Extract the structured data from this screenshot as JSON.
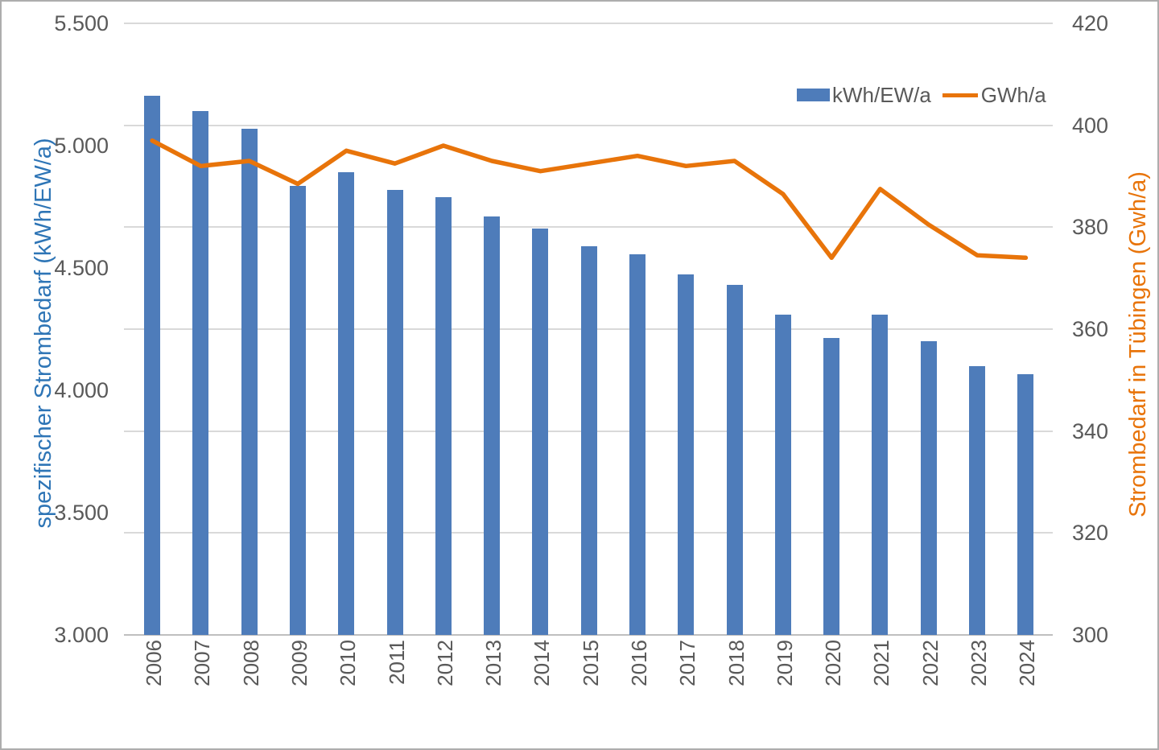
{
  "frame": {
    "background": "#ffffff",
    "border_color": "#adadad"
  },
  "legend": {
    "position": "top-right",
    "bar_label": "kWh/EW/a",
    "line_label": "GWh/a",
    "text_color": "#595959"
  },
  "left_axis": {
    "title": "spezifischer Strombedarf (kWh/EW/a)",
    "title_color": "#2e75b6",
    "tick_labels": [
      "5.500",
      "5.000",
      "4.500",
      "4.000",
      "3.500",
      "3.000"
    ],
    "tick_values": [
      5500,
      5000,
      4500,
      4000,
      3500,
      3000
    ],
    "min": 3000,
    "max": 5500
  },
  "right_axis": {
    "title": "Strombedarf in Tübingen (Gwh/a)",
    "title_color": "#e8740a",
    "tick_labels": [
      "420",
      "400",
      "380",
      "360",
      "340",
      "320",
      "300"
    ],
    "tick_values": [
      420,
      400,
      380,
      360,
      340,
      320,
      300
    ],
    "min": 300,
    "max": 420
  },
  "chart_data": {
    "type": "bar",
    "subtype": "bar+line dual axis",
    "title": "",
    "xlabel": "",
    "categories": [
      "2006",
      "2007",
      "2008",
      "2009",
      "2010",
      "2011",
      "2012",
      "2013",
      "2014",
      "2015",
      "2016",
      "2017",
      "2018",
      "2019",
      "2020",
      "2021",
      "2022",
      "2023",
      "2024"
    ],
    "series": [
      {
        "name": "kWh/EW/a",
        "type": "bar",
        "axis": "left",
        "color": "#4e7cba",
        "values": [
          5205,
          5140,
          5070,
          4835,
          4890,
          4820,
          4790,
          4710,
          4660,
          4590,
          4555,
          4475,
          4430,
          4310,
          4215,
          4310,
          4200,
          4100,
          4065
        ]
      },
      {
        "name": "GWh/a",
        "type": "line",
        "axis": "right",
        "color": "#e8740a",
        "values": [
          397,
          392,
          393,
          388.5,
          395,
          392.5,
          396,
          393,
          391,
          392.5,
          394,
          392,
          393,
          386.5,
          374,
          387.5,
          380.5,
          374.5,
          374
        ]
      }
    ],
    "left_ylim": [
      3000,
      5500
    ],
    "right_ylim": [
      300,
      420
    ],
    "grid": "horizontal, aligned to right axis ticks every 20",
    "legend_position": "top-right inside plot",
    "gridline_color": "#d9d9d9",
    "axisline_color": "#bfbfbf",
    "tick_text_color": "#595959"
  }
}
